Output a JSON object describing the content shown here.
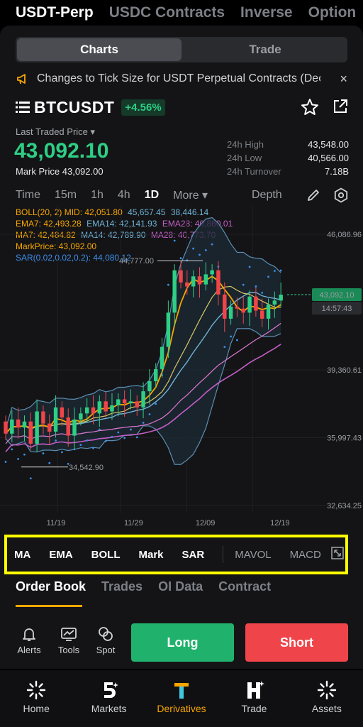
{
  "top_tabs": [
    "USDT-Perp",
    "USDC Contracts",
    "Inverse",
    "Option"
  ],
  "segment": {
    "charts": "Charts",
    "trade": "Trade"
  },
  "notice": {
    "text": "Changes to Tick Size for USDT Perpetual Contracts (Dec...",
    "close": "×"
  },
  "symbol": {
    "name": "BTCUSDT",
    "change": "+4.56%"
  },
  "price": {
    "label": "Last Traded Price ▾",
    "last": "43,092.10",
    "mark_label": "Mark Price",
    "mark_value": "43,092.00"
  },
  "stats": [
    {
      "k": "24h High",
      "v": "43,548.00"
    },
    {
      "k": "24h Low",
      "v": "40,566.00"
    },
    {
      "k": "24h Turnover",
      "v": "7.18B"
    }
  ],
  "timeframes": [
    "Time",
    "15m",
    "1h",
    "4h",
    "1D",
    "More ▾"
  ],
  "depth": "Depth",
  "indicators": {
    "boll": {
      "label": "BOLL(20, 2) MID: 42,051.80",
      "up": "45,657.45",
      "dn": "38,446.14"
    },
    "ema": {
      "e7": "EMA7: 42,493.28",
      "e14": "EMA14: 42,141.93",
      "e28": "EMA28: 40,860.01"
    },
    "ma": {
      "m7": "MA7: 42,484.82",
      "m14": "MA14: 42,789.90",
      "m28": "MA28: 40,773.70"
    },
    "markprice": "MarkPrice: 43,092.00",
    "sar": "SAR(0.02,0.02,0.2): 44,080.12"
  },
  "chart_data": {
    "type": "candlestick",
    "y_ticks": [
      "46,086.96",
      "39,360.61",
      "35,997.43",
      "32,634.25"
    ],
    "x_ticks": [
      "11/19",
      "11/29",
      "12/09",
      "12/19"
    ],
    "ylim": [
      32634.25,
      46086.96
    ],
    "current_price_tag": "43,092.10",
    "countdown_tag": "14:57:43",
    "high_marker": "44,777.00",
    "low_marker": "34,542.90",
    "closes": [
      36200,
      36900,
      36500,
      36800,
      35700,
      37300,
      36700,
      36300,
      37500,
      37000,
      36100,
      36900,
      37200,
      37500,
      37200,
      37800,
      37300,
      37600,
      37900,
      37700,
      37800,
      37500,
      38300,
      38800,
      39400,
      40500,
      42200,
      44300,
      43700,
      43500,
      44000,
      43600,
      44100,
      44300,
      43100,
      41900,
      42500,
      42400,
      42200,
      43000,
      42300,
      41900,
      42600,
      42800,
      43092
    ],
    "opens": [
      36800,
      36200,
      36900,
      36500,
      36800,
      35700,
      37300,
      36700,
      36300,
      37500,
      37000,
      36100,
      36900,
      37200,
      37500,
      37200,
      37800,
      37300,
      37600,
      37900,
      37700,
      37800,
      37500,
      38300,
      38800,
      39400,
      40500,
      42200,
      44300,
      43700,
      43500,
      44000,
      43600,
      44100,
      44300,
      43100,
      41900,
      42500,
      42400,
      42200,
      43000,
      42300,
      41900,
      42600,
      42800
    ]
  },
  "indicator_bar": [
    "MA",
    "EMA",
    "BOLL",
    "Mark",
    "SAR",
    "MAVOL",
    "MACD"
  ],
  "book_tabs": [
    "Order Book",
    "Trades",
    "OI Data",
    "Contract"
  ],
  "actions": {
    "alerts": "Alerts",
    "tools": "Tools",
    "spot": "Spot",
    "long": "Long",
    "short": "Short"
  },
  "bottom_nav": [
    "Home",
    "Markets",
    "Derivatives",
    "Trade",
    "Assets"
  ],
  "colors": {
    "up": "#2ecf85",
    "down": "#ef454a",
    "accent": "#f7a600"
  }
}
